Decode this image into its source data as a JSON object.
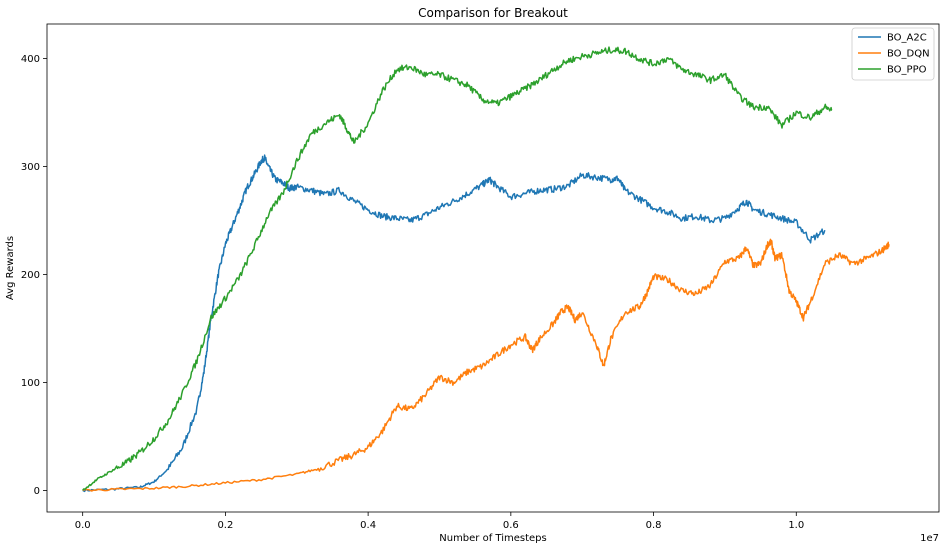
{
  "chart_data": {
    "type": "line",
    "title": "Comparison for Breakout",
    "xlabel": "Number of Timesteps",
    "ylabel": "Avg Rewards",
    "x_offset_label": "1e7",
    "xlim": [
      -0.05,
      1.2
    ],
    "ylim": [
      -20,
      432
    ],
    "xticks": [
      0.0,
      0.2,
      0.4,
      0.6,
      0.8,
      1.0
    ],
    "xtick_labels": [
      "0.0",
      "0.2",
      "0.4",
      "0.6",
      "0.8",
      "1.0"
    ],
    "yticks": [
      0,
      100,
      200,
      300,
      400
    ],
    "ytick_labels": [
      "0",
      "100",
      "200",
      "300",
      "400"
    ],
    "grid": false,
    "legend_position": "top-right",
    "series": [
      {
        "name": "BO_A2C",
        "color": "#1f77b4",
        "x": [
          0.0,
          0.04,
          0.08,
          0.1,
          0.12,
          0.14,
          0.16,
          0.17,
          0.18,
          0.19,
          0.2,
          0.21,
          0.22,
          0.23,
          0.24,
          0.25,
          0.255,
          0.26,
          0.27,
          0.28,
          0.29,
          0.3,
          0.32,
          0.34,
          0.36,
          0.38,
          0.4,
          0.42,
          0.44,
          0.46,
          0.48,
          0.5,
          0.52,
          0.54,
          0.56,
          0.57,
          0.58,
          0.6,
          0.62,
          0.64,
          0.66,
          0.68,
          0.7,
          0.72,
          0.74,
          0.75,
          0.76,
          0.78,
          0.8,
          0.82,
          0.84,
          0.86,
          0.88,
          0.9,
          0.92,
          0.93,
          0.94,
          0.96,
          0.98,
          1.0,
          1.02,
          1.04
        ],
        "y": [
          0,
          1,
          3,
          8,
          20,
          40,
          75,
          110,
          160,
          200,
          228,
          245,
          262,
          280,
          292,
          305,
          308,
          300,
          288,
          285,
          280,
          281,
          278,
          274,
          278,
          268,
          260,
          254,
          252,
          250,
          255,
          262,
          268,
          275,
          283,
          288,
          282,
          272,
          275,
          278,
          279,
          282,
          292,
          290,
          288,
          289,
          278,
          270,
          262,
          258,
          252,
          254,
          250,
          252,
          262,
          268,
          260,
          256,
          252,
          248,
          232,
          241
        ]
      },
      {
        "name": "BO_DQN",
        "color": "#ff7f0e",
        "x": [
          0.0,
          0.05,
          0.1,
          0.15,
          0.2,
          0.25,
          0.3,
          0.33,
          0.36,
          0.38,
          0.4,
          0.42,
          0.44,
          0.46,
          0.48,
          0.5,
          0.52,
          0.54,
          0.56,
          0.58,
          0.6,
          0.62,
          0.63,
          0.64,
          0.66,
          0.67,
          0.68,
          0.69,
          0.7,
          0.72,
          0.73,
          0.74,
          0.76,
          0.78,
          0.79,
          0.8,
          0.82,
          0.84,
          0.86,
          0.88,
          0.9,
          0.92,
          0.93,
          0.94,
          0.95,
          0.96,
          0.965,
          0.97,
          0.98,
          0.99,
          1.0,
          1.01,
          1.02,
          1.04,
          1.06,
          1.08,
          1.1,
          1.12,
          1.13
        ],
        "y": [
          0,
          1,
          2,
          4,
          7,
          10,
          15,
          20,
          28,
          33,
          40,
          55,
          78,
          75,
          88,
          105,
          100,
          110,
          115,
          125,
          135,
          142,
          130,
          140,
          155,
          165,
          170,
          158,
          165,
          135,
          115,
          140,
          165,
          170,
          182,
          198,
          195,
          185,
          182,
          190,
          212,
          215,
          225,
          208,
          210,
          228,
          230,
          215,
          218,
          185,
          175,
          160,
          175,
          210,
          218,
          210,
          215,
          222,
          228
        ]
      },
      {
        "name": "BO_PPO",
        "color": "#2ca02c",
        "x": [
          0.0,
          0.02,
          0.04,
          0.06,
          0.08,
          0.1,
          0.12,
          0.14,
          0.16,
          0.18,
          0.2,
          0.22,
          0.24,
          0.26,
          0.28,
          0.3,
          0.32,
          0.34,
          0.36,
          0.37,
          0.38,
          0.4,
          0.42,
          0.44,
          0.46,
          0.48,
          0.5,
          0.52,
          0.54,
          0.56,
          0.58,
          0.6,
          0.62,
          0.64,
          0.66,
          0.68,
          0.7,
          0.72,
          0.74,
          0.76,
          0.78,
          0.8,
          0.82,
          0.84,
          0.86,
          0.88,
          0.9,
          0.92,
          0.94,
          0.96,
          0.98,
          1.0,
          1.02,
          1.04,
          1.05
        ],
        "y": [
          0,
          10,
          18,
          25,
          35,
          48,
          65,
          90,
          120,
          160,
          178,
          198,
          225,
          255,
          275,
          305,
          330,
          340,
          348,
          335,
          322,
          340,
          370,
          390,
          392,
          385,
          385,
          380,
          375,
          362,
          358,
          365,
          372,
          380,
          390,
          398,
          402,
          405,
          408,
          407,
          400,
          395,
          400,
          390,
          385,
          380,
          385,
          365,
          355,
          355,
          338,
          350,
          345,
          355,
          352
        ]
      }
    ]
  }
}
